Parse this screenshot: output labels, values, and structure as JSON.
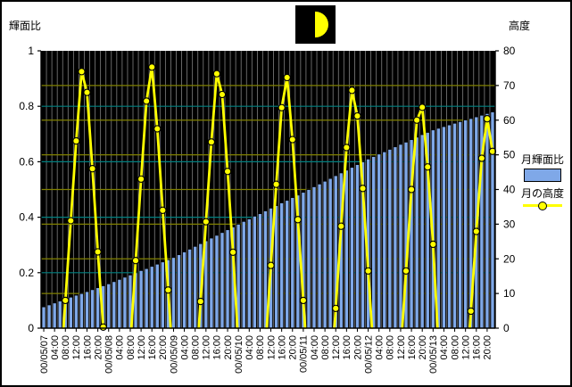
{
  "window": {
    "kind": "astronomy-chart"
  },
  "moon_icon": {
    "phase": "waxing-half-moon",
    "box_color": "#000000",
    "moon_color": "#FFFF00"
  },
  "chart_data": {
    "type": "combo-bar-line",
    "title": "",
    "x": {
      "start_label": "00/05/07",
      "step_hours": 2,
      "label_every_categories": 2,
      "labels": [
        "00/05/07",
        "04:00",
        "08:00",
        "12:00",
        "16:00",
        "20:00",
        "00/05/08",
        "04:00",
        "08:00",
        "12:00",
        "16:00",
        "20:00",
        "00/05/09",
        "04:00",
        "08:00",
        "12:00",
        "16:00",
        "20:00",
        "00/05/10",
        "04:00",
        "08:00",
        "12:00",
        "16:00",
        "20:00",
        "00/05/11",
        "04:00",
        "08:00",
        "12:00",
        "16:00",
        "20:00",
        "00/05/12",
        "04:00",
        "08:00",
        "12:00",
        "16:00",
        "20:00",
        "00/05/13",
        "04:00",
        "08:00",
        "12:00",
        "16:00",
        "20:00"
      ]
    },
    "y_left": {
      "title": "輝面比",
      "min": 0,
      "max": 1,
      "ticks": [
        "0",
        "0.2",
        "0.4",
        "0.6",
        "0.8",
        "1"
      ],
      "tick_values": [
        0,
        0.2,
        0.4,
        0.6,
        0.8,
        1
      ],
      "grid_color": "#008080"
    },
    "y_right": {
      "title": "高度",
      "min": 0,
      "max": 80,
      "ticks": [
        "0",
        "10",
        "20",
        "30",
        "40",
        "50",
        "60",
        "70",
        "80"
      ],
      "tick_values": [
        0,
        10,
        20,
        30,
        40,
        50,
        60,
        70,
        80
      ],
      "grid_color": "#808000"
    },
    "series": [
      {
        "name": "月輝面比",
        "type": "bar",
        "axis": "left",
        "values": [
          0.077,
          0.084,
          0.091,
          0.098,
          0.105,
          0.112,
          0.119,
          0.125,
          0.132,
          0.139,
          0.146,
          0.153,
          0.16,
          0.168,
          0.176,
          0.184,
          0.192,
          0.2,
          0.208,
          0.215,
          0.223,
          0.231,
          0.239,
          0.247,
          0.255,
          0.265,
          0.275,
          0.285,
          0.295,
          0.305,
          0.315,
          0.325,
          0.335,
          0.345,
          0.355,
          0.365,
          0.375,
          0.385,
          0.394,
          0.404,
          0.413,
          0.423,
          0.433,
          0.442,
          0.452,
          0.461,
          0.471,
          0.48,
          0.49,
          0.5,
          0.51,
          0.52,
          0.53,
          0.54,
          0.55,
          0.56,
          0.57,
          0.58,
          0.59,
          0.6,
          0.61,
          0.619,
          0.628,
          0.636,
          0.645,
          0.654,
          0.663,
          0.671,
          0.68,
          0.689,
          0.698,
          0.706,
          0.715,
          0.721,
          0.727,
          0.733,
          0.739,
          0.745,
          0.751,
          0.756,
          0.762,
          0.768,
          0.774,
          0.78
        ]
      },
      {
        "name": "月の高度",
        "type": "line",
        "axis": "right",
        "values": [
          null,
          null,
          null,
          null,
          8,
          31,
          54,
          74,
          68,
          46,
          22,
          0.3,
          null,
          null,
          null,
          null,
          null,
          19.5,
          43,
          65.5,
          75.3,
          57.5,
          34,
          11,
          null,
          null,
          null,
          null,
          null,
          7.7,
          30.7,
          53.7,
          73.4,
          67.4,
          45.2,
          21.9,
          null,
          null,
          null,
          null,
          null,
          null,
          18.1,
          41.5,
          63.6,
          72.3,
          54.4,
          31.3,
          8,
          null,
          null,
          null,
          null,
          null,
          5.7,
          29.4,
          52.1,
          68.6,
          61.2,
          40.3,
          16.5,
          null,
          null,
          null,
          null,
          null,
          null,
          16.5,
          40,
          60,
          63.7,
          46.5,
          24.2,
          null,
          null,
          null,
          null,
          null,
          null,
          4.9,
          27.9,
          49,
          60.4,
          51
        ]
      }
    ],
    "colors": {
      "plot_bg": "#000000",
      "v_grid": "#808080",
      "bar_fill": "#7FA8E8",
      "bar_border": "#000000",
      "line": "#FFFF00",
      "marker_fill": "#FFFF00",
      "marker_border": "#000000",
      "axis": "#000000",
      "text": "#000000"
    },
    "layout": {
      "grid": true,
      "legend_position": "right"
    }
  }
}
